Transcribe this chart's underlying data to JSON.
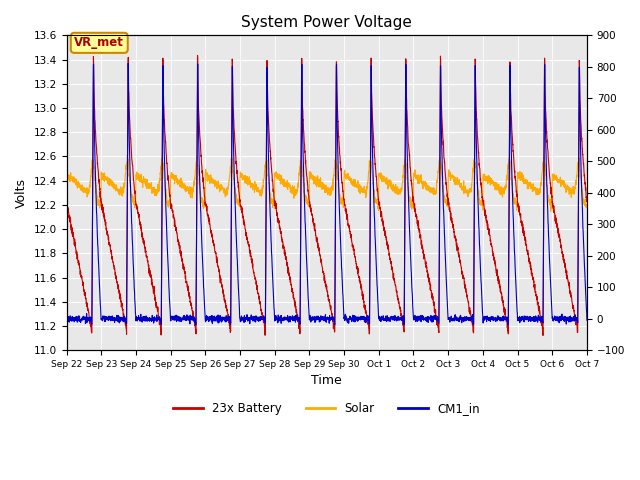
{
  "title": "System Power Voltage",
  "xlabel": "Time",
  "ylabel": "Volts",
  "ylim_left": [
    11.0,
    13.6
  ],
  "ylim_right": [
    -100,
    900
  ],
  "yticks_left": [
    11.0,
    11.2,
    11.4,
    11.6,
    11.8,
    12.0,
    12.2,
    12.4,
    12.6,
    12.8,
    13.0,
    13.2,
    13.4,
    13.6
  ],
  "yticks_right": [
    -100,
    0,
    100,
    200,
    300,
    400,
    500,
    600,
    700,
    800,
    900
  ],
  "xtick_labels": [
    "Sep 22",
    "Sep 23",
    "Sep 24",
    "Sep 25",
    "Sep 26",
    "Sep 27",
    "Sep 28",
    "Sep 29",
    "Sep 30",
    "Oct 1",
    "Oct 2",
    "Oct 3",
    "Oct 4",
    "Oct 5",
    "Oct 6",
    "Oct 7"
  ],
  "legend_labels": [
    "23x Battery",
    "Solar",
    "CM1_in"
  ],
  "legend_colors": [
    "#cc0000",
    "#ffaa00",
    "#0000cc"
  ],
  "annotation_text": "VR_met",
  "annotation_color": "#aa0000",
  "annotation_bg": "#ffff99",
  "annotation_border": "#cc8800",
  "bg_color": "#e8e8e8",
  "n_days": 15
}
